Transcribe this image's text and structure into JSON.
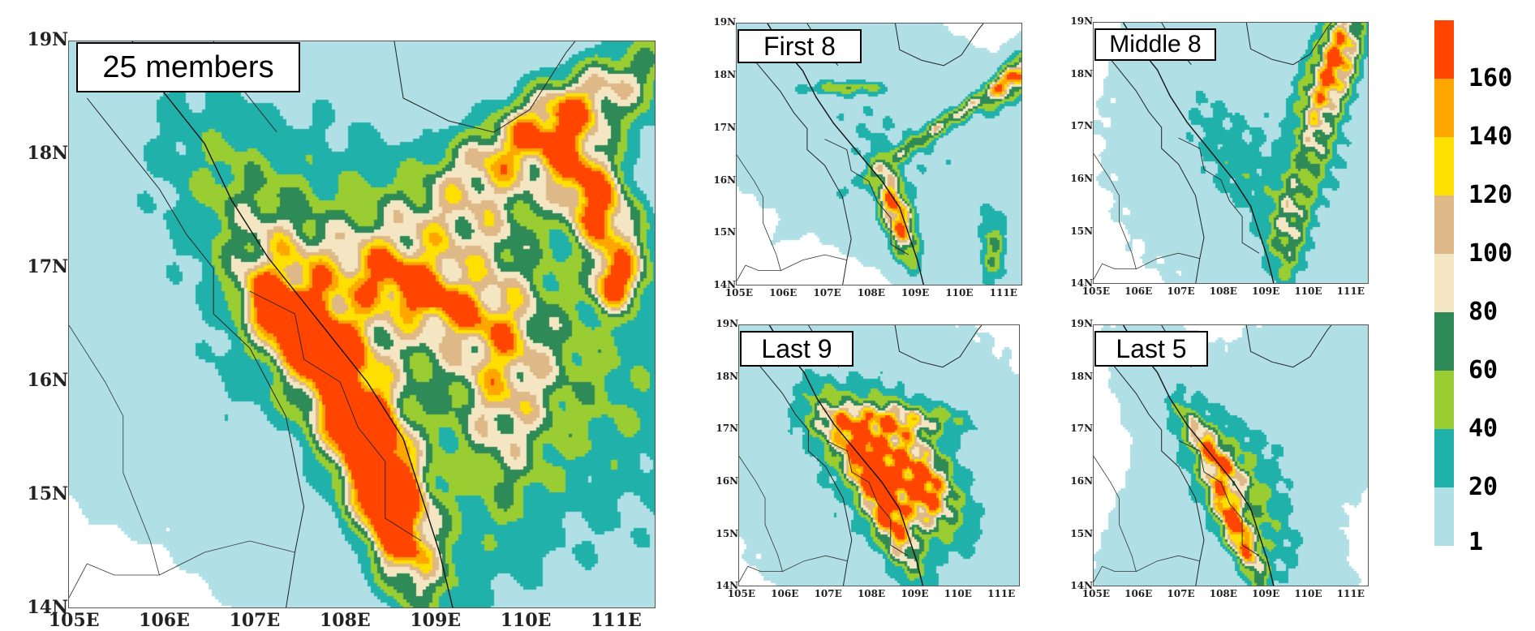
{
  "panels": [
    {
      "id": "all",
      "title": "25 members"
    },
    {
      "id": "first",
      "title": "First 8"
    },
    {
      "id": "middle",
      "title": "Middle 8"
    },
    {
      "id": "last9",
      "title": "Last 9"
    },
    {
      "id": "last5",
      "title": "Last 5"
    }
  ],
  "axes": {
    "lon_ticks": [
      "105E",
      "106E",
      "107E",
      "108E",
      "109E",
      "110E",
      "111E"
    ],
    "lat_ticks": [
      "14N",
      "15N",
      "16N",
      "17N",
      "18N",
      "19N"
    ],
    "lon_range": [
      105,
      111.5
    ],
    "lat_range": [
      14,
      19
    ]
  },
  "colorbar": {
    "labels": [
      "160",
      "140",
      "120",
      "100",
      "80",
      "60",
      "40",
      "20",
      "1"
    ],
    "levels": [
      1,
      20,
      40,
      60,
      80,
      100,
      120,
      140,
      160
    ],
    "colors": [
      "#ff4500",
      "#ffa500",
      "#ffdf00",
      "#deb887",
      "#f5e6c3",
      "#2e8b57",
      "#9acd32",
      "#20b2aa",
      "#b0e0e6"
    ]
  }
}
